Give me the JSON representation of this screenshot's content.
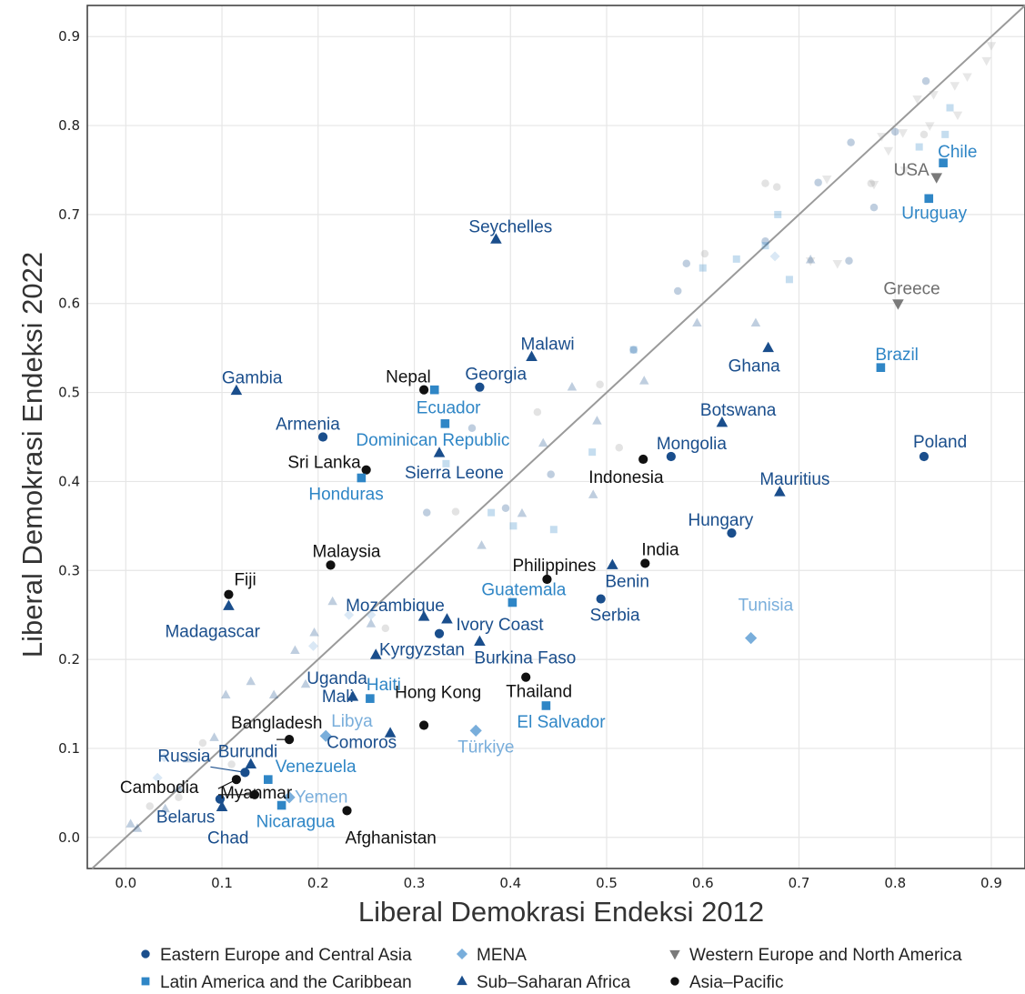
{
  "chart_data": {
    "type": "scatter",
    "xlabel": "Liberal Demokrasi Endeksi 2012",
    "ylabel": "Liberal Demokrasi Endeksi 2022",
    "xlim": [
      -0.04,
      0.935
    ],
    "ylim": [
      -0.035,
      0.935
    ],
    "xticks": [
      "0.0",
      "0.1",
      "0.2",
      "0.3",
      "0.4",
      "0.5",
      "0.6",
      "0.7",
      "0.8",
      "0.9"
    ],
    "yticks": [
      "0.0",
      "0.1",
      "0.2",
      "0.3",
      "0.4",
      "0.5",
      "0.6",
      "0.7",
      "0.8",
      "0.9"
    ],
    "grid": true,
    "diagonal_line": true,
    "legend_position": "bottom",
    "regions": [
      {
        "key": "eeca",
        "name": "Eastern Europe and Central Asia",
        "color": "#1a4e8c",
        "shape": "circle"
      },
      {
        "key": "lac",
        "name": "Latin America and the Caribbean",
        "color": "#2f86c6",
        "shape": "square"
      },
      {
        "key": "mena",
        "name": "MENA",
        "color": "#79aedb",
        "shape": "diamond"
      },
      {
        "key": "ssa",
        "name": "Sub–Saharan Africa",
        "color": "#1a4e8c",
        "shape": "triangle"
      },
      {
        "key": "wena",
        "name": "Western Europe and North America",
        "color": "#7a7a7a",
        "shape": "triangle-down"
      },
      {
        "key": "ap",
        "name": "Asia–Pacific",
        "color": "#111111",
        "shape": "circle"
      }
    ],
    "labeled_points": [
      {
        "label": "Chile",
        "region": "lac",
        "x": 0.85,
        "y": 0.758
      },
      {
        "label": "USA",
        "region": "wena",
        "x": 0.843,
        "y": 0.742
      },
      {
        "label": "Uruguay",
        "region": "lac",
        "x": 0.835,
        "y": 0.718
      },
      {
        "label": "Greece",
        "region": "wena",
        "x": 0.803,
        "y": 0.6
      },
      {
        "label": "Brazil",
        "region": "lac",
        "x": 0.785,
        "y": 0.528
      },
      {
        "label": "Poland",
        "region": "eeca",
        "x": 0.83,
        "y": 0.428
      },
      {
        "label": "Seychelles",
        "region": "ssa",
        "x": 0.385,
        "y": 0.672
      },
      {
        "label": "Malawi",
        "region": "ssa",
        "x": 0.422,
        "y": 0.54
      },
      {
        "label": "Ghana",
        "region": "ssa",
        "x": 0.668,
        "y": 0.55
      },
      {
        "label": "Gambia",
        "region": "ssa",
        "x": 0.115,
        "y": 0.502
      },
      {
        "label": "Nepal",
        "region": "ap",
        "x": 0.31,
        "y": 0.503
      },
      {
        "label": "Georgia",
        "region": "eeca",
        "x": 0.368,
        "y": 0.506
      },
      {
        "label": "Ecuador",
        "region": "lac",
        "x": 0.321,
        "y": 0.503
      },
      {
        "label": "Armenia",
        "region": "eeca",
        "x": 0.205,
        "y": 0.45
      },
      {
        "label": "Dominican Republic",
        "region": "lac",
        "x": 0.332,
        "y": 0.465
      },
      {
        "label": "Botswana",
        "region": "ssa",
        "x": 0.62,
        "y": 0.466
      },
      {
        "label": "Mongolia",
        "region": "eeca",
        "x": 0.567,
        "y": 0.428
      },
      {
        "label": "Sri Lanka",
        "region": "ap",
        "x": 0.25,
        "y": 0.413
      },
      {
        "label": "Sierra Leone",
        "region": "ssa",
        "x": 0.326,
        "y": 0.432
      },
      {
        "label": "Indonesia",
        "region": "ap",
        "x": 0.538,
        "y": 0.425
      },
      {
        "label": "Honduras",
        "region": "lac",
        "x": 0.245,
        "y": 0.404
      },
      {
        "label": "Mauritius",
        "region": "ssa",
        "x": 0.68,
        "y": 0.388
      },
      {
        "label": "Hungary",
        "region": "eeca",
        "x": 0.63,
        "y": 0.342
      },
      {
        "label": "Malaysia",
        "region": "ap",
        "x": 0.213,
        "y": 0.306
      },
      {
        "label": "India",
        "region": "ap",
        "x": 0.54,
        "y": 0.308
      },
      {
        "label": "Philippines",
        "region": "ap",
        "x": 0.438,
        "y": 0.29
      },
      {
        "label": "Benin",
        "region": "ssa",
        "x": 0.506,
        "y": 0.306
      },
      {
        "label": "Fiji",
        "region": "ap",
        "x": 0.107,
        "y": 0.273
      },
      {
        "label": "Guatemala",
        "region": "lac",
        "x": 0.402,
        "y": 0.264
      },
      {
        "label": "Serbia",
        "region": "eeca",
        "x": 0.494,
        "y": 0.268
      },
      {
        "label": "Madagascar",
        "region": "ssa",
        "x": 0.107,
        "y": 0.26
      },
      {
        "label": "Mozambique",
        "region": "ssa",
        "x": 0.31,
        "y": 0.248
      },
      {
        "label": "Ivory Coast",
        "region": "ssa",
        "x": 0.334,
        "y": 0.245
      },
      {
        "label": "Tunisia",
        "region": "mena",
        "x": 0.65,
        "y": 0.224
      },
      {
        "label": "Kyrgyzstan",
        "region": "eeca",
        "x": 0.326,
        "y": 0.229
      },
      {
        "label": "Burkina Faso",
        "region": "ssa",
        "x": 0.368,
        "y": 0.22
      },
      {
        "label": "Uganda",
        "region": "ssa",
        "x": 0.26,
        "y": 0.205
      },
      {
        "label": "Mali",
        "region": "ssa",
        "x": 0.236,
        "y": 0.158
      },
      {
        "label": "Haiti",
        "region": "lac",
        "x": 0.254,
        "y": 0.156
      },
      {
        "label": "Thailand",
        "region": "ap",
        "x": 0.416,
        "y": 0.18
      },
      {
        "label": "El Salvador",
        "region": "lac",
        "x": 0.437,
        "y": 0.148
      },
      {
        "label": "Hong Kong",
        "region": "ap",
        "x": 0.31,
        "y": 0.126
      },
      {
        "label": "Bangladesh",
        "region": "ap",
        "x": 0.17,
        "y": 0.11
      },
      {
        "label": "Libya",
        "region": "mena",
        "x": 0.208,
        "y": 0.114
      },
      {
        "label": "Comoros",
        "region": "ssa",
        "x": 0.275,
        "y": 0.117
      },
      {
        "label": "Türkiye",
        "region": "mena",
        "x": 0.364,
        "y": 0.12
      },
      {
        "label": "Burundi",
        "region": "ssa",
        "x": 0.13,
        "y": 0.082
      },
      {
        "label": "Russia",
        "region": "eeca",
        "x": 0.124,
        "y": 0.073
      },
      {
        "label": "Venezuela",
        "region": "lac",
        "x": 0.148,
        "y": 0.065
      },
      {
        "label": "Cambodia",
        "region": "ap",
        "x": 0.115,
        "y": 0.065
      },
      {
        "label": "Myanmar",
        "region": "ap",
        "x": 0.134,
        "y": 0.048
      },
      {
        "label": "Yemen",
        "region": "mena",
        "x": 0.17,
        "y": 0.045
      },
      {
        "label": "Belarus",
        "region": "eeca",
        "x": 0.098,
        "y": 0.043
      },
      {
        "label": "Nicaragua",
        "region": "lac",
        "x": 0.162,
        "y": 0.036
      },
      {
        "label": "Afghanistan",
        "region": "ap",
        "x": 0.23,
        "y": 0.03
      },
      {
        "label": "Chad",
        "region": "ssa",
        "x": 0.1,
        "y": 0.034
      }
    ],
    "background_points": [
      {
        "region": "eeca",
        "x": 0.832,
        "y": 0.85
      },
      {
        "region": "wena",
        "x": 0.875,
        "y": 0.855
      },
      {
        "region": "wena",
        "x": 0.862,
        "y": 0.845
      },
      {
        "region": "wena",
        "x": 0.84,
        "y": 0.835
      },
      {
        "region": "wena",
        "x": 0.865,
        "y": 0.812
      },
      {
        "region": "wena",
        "x": 0.9,
        "y": 0.89
      },
      {
        "region": "wena",
        "x": 0.895,
        "y": 0.873
      },
      {
        "region": "wena",
        "x": 0.823,
        "y": 0.83
      },
      {
        "region": "wena",
        "x": 0.808,
        "y": 0.792
      },
      {
        "region": "wena",
        "x": 0.793,
        "y": 0.772
      },
      {
        "region": "wena",
        "x": 0.786,
        "y": 0.788
      },
      {
        "region": "wena",
        "x": 0.81,
        "y": 0.75
      },
      {
        "region": "wena",
        "x": 0.778,
        "y": 0.734
      },
      {
        "region": "wena",
        "x": 0.729,
        "y": 0.74
      },
      {
        "region": "wena",
        "x": 0.74,
        "y": 0.645
      },
      {
        "region": "wena",
        "x": 0.712,
        "y": 0.648
      },
      {
        "region": "wena",
        "x": 0.836,
        "y": 0.8
      },
      {
        "region": "lac",
        "x": 0.825,
        "y": 0.776
      },
      {
        "region": "lac",
        "x": 0.857,
        "y": 0.82
      },
      {
        "region": "lac",
        "x": 0.852,
        "y": 0.79
      },
      {
        "region": "eeca",
        "x": 0.754,
        "y": 0.781
      },
      {
        "region": "eeca",
        "x": 0.72,
        "y": 0.736
      },
      {
        "region": "eeca",
        "x": 0.8,
        "y": 0.793
      },
      {
        "region": "eeca",
        "x": 0.778,
        "y": 0.708
      },
      {
        "region": "eeca",
        "x": 0.752,
        "y": 0.648
      },
      {
        "region": "eeca",
        "x": 0.665,
        "y": 0.67
      },
      {
        "region": "eeca",
        "x": 0.583,
        "y": 0.645
      },
      {
        "region": "eeca",
        "x": 0.574,
        "y": 0.614
      },
      {
        "region": "eeca",
        "x": 0.528,
        "y": 0.548
      },
      {
        "region": "eeca",
        "x": 0.442,
        "y": 0.408
      },
      {
        "region": "eeca",
        "x": 0.395,
        "y": 0.37
      },
      {
        "region": "eeca",
        "x": 0.313,
        "y": 0.365
      },
      {
        "region": "eeca",
        "x": 0.36,
        "y": 0.46
      },
      {
        "region": "ap",
        "x": 0.83,
        "y": 0.79
      },
      {
        "region": "ap",
        "x": 0.665,
        "y": 0.735
      },
      {
        "region": "ap",
        "x": 0.677,
        "y": 0.731
      },
      {
        "region": "ap",
        "x": 0.602,
        "y": 0.656
      },
      {
        "region": "ap",
        "x": 0.775,
        "y": 0.735
      },
      {
        "region": "ap",
        "x": 0.428,
        "y": 0.478
      },
      {
        "region": "ap",
        "x": 0.493,
        "y": 0.509
      },
      {
        "region": "ap",
        "x": 0.513,
        "y": 0.438
      },
      {
        "region": "ap",
        "x": 0.343,
        "y": 0.366
      },
      {
        "region": "ap",
        "x": 0.08,
        "y": 0.106
      },
      {
        "region": "lac",
        "x": 0.6,
        "y": 0.64
      },
      {
        "region": "lac",
        "x": 0.635,
        "y": 0.65
      },
      {
        "region": "lac",
        "x": 0.665,
        "y": 0.665
      },
      {
        "region": "lac",
        "x": 0.69,
        "y": 0.627
      },
      {
        "region": "lac",
        "x": 0.678,
        "y": 0.7
      },
      {
        "region": "lac",
        "x": 0.528,
        "y": 0.548
      },
      {
        "region": "lac",
        "x": 0.485,
        "y": 0.433
      },
      {
        "region": "lac",
        "x": 0.445,
        "y": 0.346
      },
      {
        "region": "lac",
        "x": 0.403,
        "y": 0.35
      },
      {
        "region": "lac",
        "x": 0.38,
        "y": 0.365
      },
      {
        "region": "lac",
        "x": 0.333,
        "y": 0.42
      },
      {
        "region": "mena",
        "x": 0.675,
        "y": 0.653
      },
      {
        "region": "mena",
        "x": 0.255,
        "y": 0.25
      },
      {
        "region": "mena",
        "x": 0.232,
        "y": 0.25
      },
      {
        "region": "mena",
        "x": 0.195,
        "y": 0.215
      },
      {
        "region": "mena",
        "x": 0.04,
        "y": 0.09
      },
      {
        "region": "mena",
        "x": 0.033,
        "y": 0.067
      },
      {
        "region": "ssa",
        "x": 0.712,
        "y": 0.649
      },
      {
        "region": "ssa",
        "x": 0.594,
        "y": 0.578
      },
      {
        "region": "ssa",
        "x": 0.655,
        "y": 0.578
      },
      {
        "region": "ssa",
        "x": 0.539,
        "y": 0.513
      },
      {
        "region": "ssa",
        "x": 0.464,
        "y": 0.506
      },
      {
        "region": "ssa",
        "x": 0.49,
        "y": 0.468
      },
      {
        "region": "ssa",
        "x": 0.486,
        "y": 0.385
      },
      {
        "region": "ssa",
        "x": 0.434,
        "y": 0.443
      },
      {
        "region": "ssa",
        "x": 0.412,
        "y": 0.364
      },
      {
        "region": "ssa",
        "x": 0.37,
        "y": 0.328
      },
      {
        "region": "ssa",
        "x": 0.255,
        "y": 0.24
      },
      {
        "region": "ssa",
        "x": 0.215,
        "y": 0.265
      },
      {
        "region": "ssa",
        "x": 0.196,
        "y": 0.23
      },
      {
        "region": "ssa",
        "x": 0.176,
        "y": 0.21
      },
      {
        "region": "ssa",
        "x": 0.13,
        "y": 0.175
      },
      {
        "region": "ssa",
        "x": 0.154,
        "y": 0.16
      },
      {
        "region": "ssa",
        "x": 0.104,
        "y": 0.16
      },
      {
        "region": "ssa",
        "x": 0.187,
        "y": 0.172
      },
      {
        "region": "ssa",
        "x": 0.092,
        "y": 0.112
      },
      {
        "region": "ssa",
        "x": 0.064,
        "y": 0.088
      },
      {
        "region": "ssa",
        "x": 0.055,
        "y": 0.055
      },
      {
        "region": "ssa",
        "x": 0.041,
        "y": 0.032
      },
      {
        "region": "ssa",
        "x": 0.005,
        "y": 0.015
      },
      {
        "region": "ssa",
        "x": 0.012,
        "y": 0.01
      },
      {
        "region": "ap",
        "x": 0.27,
        "y": 0.235
      },
      {
        "region": "ap",
        "x": 0.025,
        "y": 0.035
      },
      {
        "region": "ap",
        "x": 0.11,
        "y": 0.082
      },
      {
        "region": "ap",
        "x": 0.055,
        "y": 0.045
      }
    ]
  }
}
